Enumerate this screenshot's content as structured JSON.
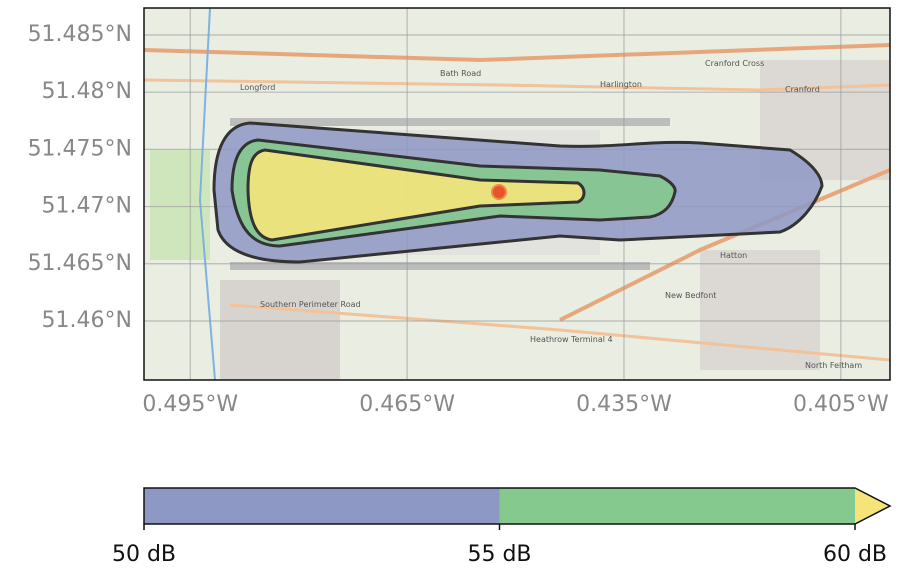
{
  "map": {
    "xlim": [
      -0.5014,
      -0.3982
    ],
    "ylim": [
      51.45484,
      51.48736
    ],
    "xticks": [
      {
        "value": -0.495,
        "label": "0.495°W"
      },
      {
        "value": -0.465,
        "label": "0.465°W"
      },
      {
        "value": -0.435,
        "label": "0.435°W"
      },
      {
        "value": -0.405,
        "label": "0.405°W"
      }
    ],
    "yticks": [
      {
        "value": 51.46,
        "label": "51.46°N"
      },
      {
        "value": 51.465,
        "label": "51.465°N"
      },
      {
        "value": 51.47,
        "label": "51.47°N"
      },
      {
        "value": 51.475,
        "label": "51.475°N"
      },
      {
        "value": 51.48,
        "label": "51.48°N"
      },
      {
        "value": 51.485,
        "label": "51.485°N"
      }
    ],
    "grid": true,
    "places": [
      "Longford",
      "Harlington",
      "Cranford",
      "Cranford Cross",
      "Hatton",
      "New Bedfont",
      "North Feltham",
      "Heathrow Terminal 4",
      "Bath Road",
      "Southern Perimeter Road"
    ]
  },
  "contours": {
    "levels": [
      50,
      55,
      60
    ],
    "colors": [
      "#8e98c4",
      "#86c98e",
      "#f4e47a"
    ]
  },
  "colorbar": {
    "lim": [
      50,
      60
    ],
    "ticks": [
      {
        "value": 50,
        "label": "50 dB"
      },
      {
        "value": 55,
        "label": "55 dB"
      },
      {
        "value": 60,
        "label": "60 dB"
      }
    ]
  }
}
